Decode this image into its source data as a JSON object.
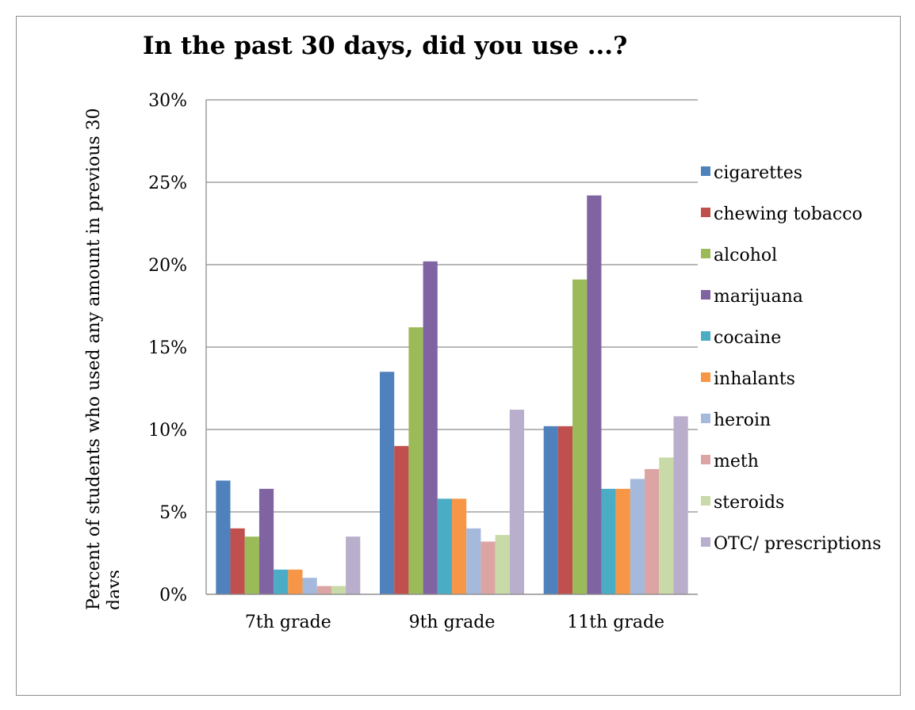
{
  "chart_data": {
    "type": "bar",
    "title": "In the past 30 days, did you use ...?",
    "ylabel": "Percent of students  who used any amount in previous 30 days",
    "xlabel": "",
    "ylim": [
      0,
      30
    ],
    "yticks": [
      "0%",
      "5%",
      "10%",
      "15%",
      "20%",
      "25%",
      "30%"
    ],
    "ytick_values": [
      0,
      5,
      10,
      15,
      20,
      25,
      30
    ],
    "grid": true,
    "legend_position": "right",
    "categories": [
      "7th grade",
      "9th grade",
      "11th grade"
    ],
    "series": [
      {
        "name": "cigarettes",
        "color": "#4f81bd",
        "values": [
          6.9,
          13.5,
          10.2
        ]
      },
      {
        "name": "chewing tobacco",
        "color": "#c0504d",
        "values": [
          4.0,
          9.0,
          10.2
        ]
      },
      {
        "name": "alcohol",
        "color": "#9bbb59",
        "values": [
          3.5,
          16.2,
          19.1
        ]
      },
      {
        "name": "marijuana",
        "color": "#8064a2",
        "values": [
          6.4,
          20.2,
          24.2
        ]
      },
      {
        "name": "cocaine",
        "color": "#4bacc6",
        "values": [
          1.5,
          5.8,
          6.4
        ]
      },
      {
        "name": "inhalants",
        "color": "#f79646",
        "values": [
          1.5,
          5.8,
          6.4
        ]
      },
      {
        "name": "heroin",
        "color": "#a5b9dd",
        "values": [
          1.0,
          4.0,
          7.0
        ]
      },
      {
        "name": "meth",
        "color": "#dca5a4",
        "values": [
          0.5,
          3.2,
          7.6
        ]
      },
      {
        "name": "steroids",
        "color": "#c8daa8",
        "values": [
          0.5,
          3.6,
          8.3
        ]
      },
      {
        "name": "OTC/ prescriptions",
        "color": "#b9aecb",
        "values": [
          3.5,
          11.2,
          10.8
        ]
      }
    ]
  }
}
